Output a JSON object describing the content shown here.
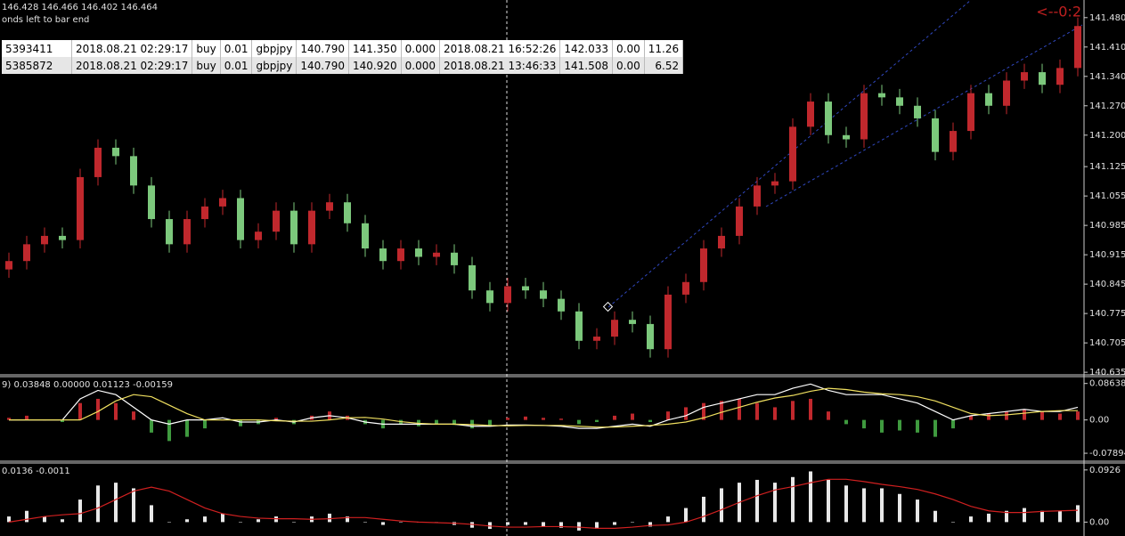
{
  "header": {
    "line1": "146.428 146.466 146.402 146.464",
    "line2": "onds left to bar end"
  },
  "alert": "<--0:2",
  "table": {
    "rows": [
      [
        "5393411",
        "2018.08.21 02:29:17",
        "buy",
        "0.01",
        "gbpjpy",
        "140.790",
        "141.350",
        "0.000",
        "2018.08.21 16:52:26",
        "142.033",
        "0.00",
        "11.26"
      ],
      [
        "5385872",
        "2018.08.21 02:29:17",
        "buy",
        "0.01",
        "gbpjpy",
        "140.790",
        "140.920",
        "0.000",
        "2018.08.21 13:46:33",
        "141.508",
        "0.00",
        "6.52"
      ]
    ]
  },
  "chart_data": [
    {
      "type": "candlestick",
      "up_color": "#c0282d",
      "down_color": "#7cc87c",
      "open": [
        140.88,
        140.9,
        140.94,
        140.96,
        140.95,
        141.1,
        141.17,
        141.15,
        141.08,
        141.0,
        140.94,
        141.0,
        141.03,
        141.05,
        140.95,
        140.97,
        141.02,
        140.94,
        141.02,
        141.04,
        140.99,
        140.93,
        140.9,
        140.93,
        140.91,
        140.92,
        140.89,
        140.83,
        140.8,
        140.84,
        140.83,
        140.81,
        140.78,
        140.71,
        140.72,
        140.76,
        140.75,
        140.69,
        140.82,
        140.85,
        140.93,
        140.96,
        141.03,
        141.08,
        141.09,
        141.22,
        141.28,
        141.2,
        141.19,
        141.3,
        141.29,
        141.27,
        141.24,
        141.16,
        141.21,
        141.3,
        141.27,
        141.33,
        141.35,
        141.32,
        141.36
      ],
      "high": [
        140.92,
        140.96,
        140.98,
        140.98,
        141.12,
        141.19,
        141.19,
        141.17,
        141.1,
        141.02,
        141.02,
        141.05,
        141.07,
        141.07,
        140.99,
        141.04,
        141.04,
        141.04,
        141.06,
        141.06,
        141.01,
        140.95,
        140.95,
        140.95,
        140.94,
        140.94,
        140.91,
        140.85,
        140.86,
        140.86,
        140.85,
        140.83,
        140.8,
        140.74,
        140.78,
        140.78,
        140.77,
        140.84,
        140.87,
        140.95,
        140.98,
        141.05,
        141.1,
        141.11,
        141.24,
        141.3,
        141.3,
        141.22,
        141.32,
        141.32,
        141.31,
        141.29,
        141.26,
        141.23,
        141.32,
        141.32,
        141.35,
        141.37,
        141.37,
        141.38,
        141.48
      ],
      "low": [
        140.86,
        140.88,
        140.92,
        140.93,
        140.93,
        141.08,
        141.13,
        141.06,
        140.98,
        140.92,
        140.92,
        140.98,
        141.01,
        140.93,
        140.93,
        140.95,
        140.92,
        140.92,
        141.0,
        140.97,
        140.91,
        140.88,
        140.88,
        140.89,
        140.89,
        140.87,
        140.81,
        140.78,
        140.78,
        140.81,
        140.79,
        140.76,
        140.69,
        140.69,
        140.7,
        140.73,
        140.67,
        140.67,
        140.8,
        140.83,
        140.91,
        140.94,
        141.01,
        141.06,
        141.07,
        141.2,
        141.18,
        141.17,
        141.17,
        141.27,
        141.25,
        141.22,
        141.14,
        141.14,
        141.19,
        141.25,
        141.25,
        141.31,
        141.3,
        141.3,
        141.34
      ],
      "close": [
        140.9,
        140.94,
        140.96,
        140.95,
        141.1,
        141.17,
        141.15,
        141.08,
        141.0,
        140.94,
        141.0,
        141.03,
        141.05,
        140.95,
        140.97,
        141.02,
        140.94,
        141.02,
        141.04,
        140.99,
        140.93,
        140.9,
        140.93,
        140.91,
        140.92,
        140.89,
        140.83,
        140.8,
        140.84,
        140.83,
        140.81,
        140.78,
        140.71,
        140.72,
        140.76,
        140.75,
        140.69,
        140.82,
        140.85,
        140.93,
        140.96,
        141.03,
        141.08,
        141.09,
        141.22,
        141.28,
        141.2,
        141.19,
        141.3,
        141.29,
        141.27,
        141.24,
        141.16,
        141.21,
        141.3,
        141.27,
        141.33,
        141.35,
        141.32,
        141.36,
        141.46
      ],
      "ylim": [
        140.631,
        141.522
      ],
      "yticks": [
        {
          "value": 141.48,
          "label": "141.480"
        },
        {
          "value": 141.41,
          "label": "141.410"
        },
        {
          "value": 141.34,
          "label": "141.340"
        },
        {
          "value": 141.27,
          "label": "141.270"
        },
        {
          "value": 141.2,
          "label": "141.200"
        },
        141.125,
        141.055,
        140.985,
        140.915,
        140.845,
        140.775,
        140.705,
        140.635
      ]
    },
    {
      "type": "macd",
      "label": "9) 0.03848 0.00000 0.01123 -0.00159",
      "pos_color": "#c0282d",
      "neg_color": "#3f9a3f",
      "histogram": [
        0.005,
        0.01,
        0.0,
        -0.005,
        0.04,
        0.05,
        0.04,
        0.02,
        -0.03,
        -0.05,
        -0.04,
        -0.02,
        0.0,
        -0.015,
        -0.01,
        0.005,
        -0.01,
        0.01,
        0.02,
        0.01,
        -0.01,
        -0.02,
        -0.01,
        -0.015,
        -0.01,
        -0.012,
        -0.02,
        -0.015,
        0.005,
        0.008,
        0.005,
        0.003,
        -0.01,
        -0.005,
        0.01,
        0.015,
        -0.005,
        0.02,
        0.03,
        0.04,
        0.045,
        0.05,
        0.04,
        0.03,
        0.045,
        0.05,
        0.02,
        -0.01,
        -0.02,
        -0.03,
        -0.025,
        -0.03,
        -0.04,
        -0.02,
        0.01,
        0.015,
        0.02,
        0.025,
        0.02,
        0.015,
        0.02
      ],
      "lines": [
        {
          "color": "#ffffff",
          "values": [
            0,
            0,
            0,
            0,
            0.05,
            0.07,
            0.06,
            0.03,
            0,
            -0.01,
            0,
            0,
            0.005,
            -0.005,
            -0.005,
            0,
            -0.005,
            0.005,
            0.01,
            0.005,
            -0.005,
            -0.01,
            -0.01,
            -0.01,
            -0.01,
            -0.01,
            -0.015,
            -0.015,
            -0.012,
            -0.012,
            -0.013,
            -0.015,
            -0.02,
            -0.02,
            -0.015,
            -0.01,
            -0.015,
            0,
            0.01,
            0.03,
            0.04,
            0.05,
            0.06,
            0.06,
            0.075,
            0.085,
            0.07,
            0.06,
            0.06,
            0.06,
            0.05,
            0.04,
            0.02,
            0,
            0.01,
            0.015,
            0.02,
            0.025,
            0.02,
            0.02,
            0.03
          ]
        },
        {
          "color": "#f0e060",
          "values": [
            0,
            0,
            0,
            0,
            0,
            0.02,
            0.045,
            0.06,
            0.055,
            0.035,
            0.015,
            0,
            0,
            0,
            0,
            -0.002,
            -0.003,
            -0.003,
            0,
            0.005,
            0.006,
            0.002,
            -0.004,
            -0.008,
            -0.01,
            -0.01,
            -0.011,
            -0.013,
            -0.014,
            -0.013,
            -0.013,
            -0.013,
            -0.015,
            -0.017,
            -0.017,
            -0.015,
            -0.013,
            -0.01,
            -0.005,
            0.005,
            0.018,
            0.03,
            0.042,
            0.052,
            0.058,
            0.068,
            0.075,
            0.072,
            0.066,
            0.062,
            0.06,
            0.055,
            0.045,
            0.03,
            0.015,
            0.01,
            0.012,
            0.016,
            0.02,
            0.022,
            0.022
          ]
        }
      ],
      "ylim": [
        -0.0957,
        0.0984
      ],
      "yticks": [
        0.08638,
        {
          "value": 0,
          "label": "0.00"
        },
        -0.07894
      ]
    },
    {
      "type": "macd",
      "label": "0.0136 -0.0011",
      "pos_color": "#e8e8e8",
      "neg_color": "#e8e8e8",
      "histogram": [
        0.01,
        0.02,
        0.01,
        0.005,
        0.04,
        0.065,
        0.07,
        0.06,
        0.03,
        0,
        0.005,
        0.01,
        0.015,
        0,
        0.005,
        0.01,
        0,
        0.01,
        0.015,
        0.01,
        0,
        -0.005,
        0,
        0,
        0,
        -0.005,
        -0.01,
        -0.012,
        -0.005,
        -0.005,
        -0.008,
        -0.01,
        -0.015,
        -0.012,
        -0.005,
        0,
        -0.008,
        0.01,
        0.025,
        0.045,
        0.06,
        0.07,
        0.075,
        0.07,
        0.08,
        0.09,
        0.075,
        0.065,
        0.06,
        0.06,
        0.05,
        0.04,
        0.02,
        0,
        0.01,
        0.015,
        0.02,
        0.025,
        0.02,
        0.02,
        0.03
      ],
      "lines": [
        {
          "color": "#d02020",
          "values": [
            0,
            0.005,
            0.01,
            0.013,
            0.015,
            0.025,
            0.04,
            0.055,
            0.062,
            0.055,
            0.04,
            0.025,
            0.015,
            0.01,
            0.007,
            0.006,
            0.006,
            0.005,
            0.006,
            0.008,
            0.008,
            0.005,
            0.002,
            0,
            -0.001,
            -0.002,
            -0.004,
            -0.007,
            -0.009,
            -0.009,
            -0.008,
            -0.008,
            -0.009,
            -0.011,
            -0.011,
            -0.009,
            -0.006,
            -0.005,
            0,
            0.01,
            0.022,
            0.035,
            0.047,
            0.057,
            0.063,
            0.07,
            0.076,
            0.076,
            0.072,
            0.067,
            0.063,
            0.058,
            0.05,
            0.04,
            0.028,
            0.02,
            0.017,
            0.017,
            0.019,
            0.02,
            0.021
          ]
        }
      ],
      "ylim": [
        -0.0231,
        0.1018
      ],
      "yticks": [
        0.0926,
        {
          "value": 0,
          "label": "0.00"
        }
      ]
    }
  ]
}
